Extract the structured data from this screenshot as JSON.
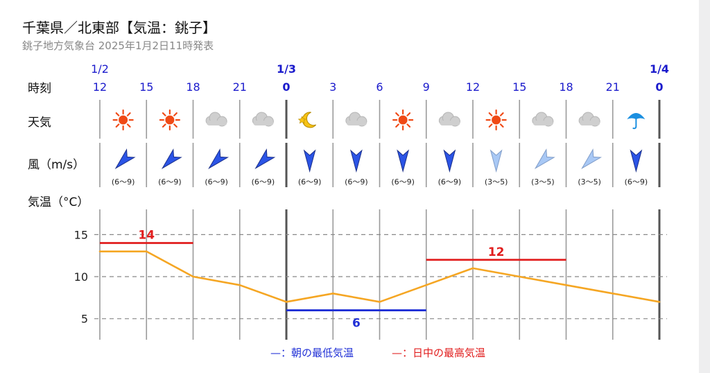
{
  "header": {
    "title": "千葉県／北東部【気温：銚子】",
    "subtitle": "銚子地方気象台 2025年1月2日11時発表"
  },
  "row_labels": {
    "time": "時刻",
    "weather": "天気",
    "wind": "風（m/s）",
    "temp": "気温（°C）"
  },
  "colors": {
    "temp_line": "#f5a623",
    "min_bar": "#1f2fd6",
    "max_bar": "#e11d1d",
    "date_text": "#1a1acc",
    "wind_strong": "#2b54e6",
    "wind_weak": "#a8c8f5"
  },
  "chart_data": {
    "type": "line",
    "dates": [
      {
        "label": "1/2",
        "index": 0
      },
      {
        "label": "1/3",
        "index": 4
      },
      {
        "label": "1/4",
        "index": 12
      }
    ],
    "hours": [
      "12",
      "15",
      "18",
      "21",
      "0",
      "3",
      "6",
      "9",
      "12",
      "15",
      "18",
      "21",
      "0"
    ],
    "day_boundary_hours": [
      4,
      12
    ],
    "weather": [
      "sun-icon",
      "sun-icon",
      "cloud-icon",
      "cloud-icon",
      "moon-icon",
      "cloud-icon",
      "sun-icon",
      "cloud-icon",
      "sun-icon",
      "cloud-icon",
      "cloud-icon",
      "umbrella-icon"
    ],
    "wind": [
      {
        "range": "(6〜9)",
        "dir": "NE",
        "strength": "strong"
      },
      {
        "range": "(6〜9)",
        "dir": "NE",
        "strength": "strong"
      },
      {
        "range": "(6〜9)",
        "dir": "NE",
        "strength": "strong"
      },
      {
        "range": "(6〜9)",
        "dir": "NE",
        "strength": "strong"
      },
      {
        "range": "(6〜9)",
        "dir": "N",
        "strength": "strong"
      },
      {
        "range": "(6〜9)",
        "dir": "N",
        "strength": "strong"
      },
      {
        "range": "(6〜9)",
        "dir": "N",
        "strength": "strong"
      },
      {
        "range": "(6〜9)",
        "dir": "N",
        "strength": "strong"
      },
      {
        "range": "(3〜5)",
        "dir": "N",
        "strength": "weak"
      },
      {
        "range": "(3〜5)",
        "dir": "NE",
        "strength": "weak"
      },
      {
        "range": "(3〜5)",
        "dir": "NE",
        "strength": "weak"
      },
      {
        "range": "(6〜9)",
        "dir": "N",
        "strength": "strong"
      }
    ],
    "temperature": [
      13,
      13,
      10,
      9,
      7,
      8,
      7,
      9,
      11,
      10,
      9,
      8,
      7
    ],
    "ylim": [
      2.5,
      18
    ],
    "yticks": [
      5,
      10,
      15
    ],
    "grid": true,
    "max_temps": [
      {
        "label": "14",
        "value": 14,
        "from": 0,
        "to": 2
      },
      {
        "label": "12",
        "value": 12,
        "from": 7,
        "to": 10
      }
    ],
    "min_temps": [
      {
        "label": "6",
        "value": 6,
        "from": 4,
        "to": 7
      }
    ],
    "legend": [
      {
        "label": "—：朝の最低気温",
        "color": "#1f2fd6"
      },
      {
        "label": "—：日中の最高気温",
        "color": "#e11d1d"
      }
    ]
  }
}
